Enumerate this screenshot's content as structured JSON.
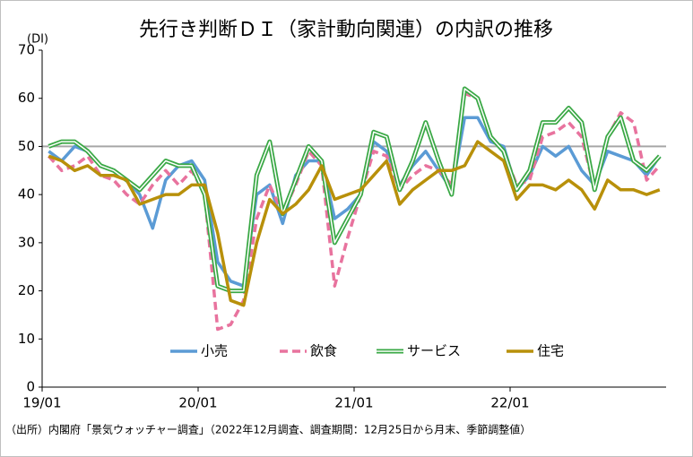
{
  "chart_data": {
    "type": "line",
    "title": "先行き判断ＤＩ（家計動向関連）の内訳の推移",
    "y_label": "(DI)",
    "note": "（出所）内閣府「景気ウォッチャー調査」（2022年12月調査、調査期間：12月25日から月末、季節調整値）",
    "categories": [
      "19/01",
      null,
      null,
      null,
      null,
      null,
      null,
      null,
      null,
      null,
      null,
      null,
      "20/01",
      null,
      null,
      null,
      null,
      null,
      null,
      null,
      null,
      null,
      null,
      null,
      "21/01",
      null,
      null,
      null,
      null,
      null,
      null,
      null,
      null,
      null,
      null,
      null,
      "22/01",
      null,
      null,
      null,
      null,
      null,
      null,
      null,
      null,
      null,
      null,
      null
    ],
    "ylim": [
      0,
      70
    ],
    "yticks": [
      0,
      10,
      20,
      30,
      40,
      50,
      60,
      70
    ],
    "reference_line": 50,
    "reference_color": "#a6a6a6",
    "legend": "bottom",
    "series": [
      {
        "name": "小売",
        "color": "#5b9bd5",
        "style": "solid",
        "values": [
          49,
          47,
          50,
          49,
          46,
          45,
          43,
          40,
          33,
          43,
          46,
          47,
          43,
          26,
          22,
          21,
          40,
          42,
          34,
          44,
          47,
          47,
          35,
          37,
          40,
          51,
          49,
          42,
          46,
          49,
          45,
          41,
          56,
          56,
          51,
          50,
          41,
          44,
          50,
          48,
          50,
          45,
          42,
          49,
          48,
          47,
          44,
          48
        ]
      },
      {
        "name": "飲食",
        "color": "#e8739e",
        "style": "dashed",
        "values": [
          48,
          45,
          46,
          48,
          44,
          43,
          40,
          38,
          42,
          45,
          42,
          45,
          40,
          12,
          13,
          18,
          35,
          42,
          36,
          42,
          49,
          46,
          21,
          31,
          40,
          49,
          48,
          41,
          44,
          46,
          45,
          42,
          61,
          60,
          52,
          49,
          42,
          43,
          52,
          53,
          55,
          52,
          41,
          52,
          57,
          55,
          43,
          46
        ]
      },
      {
        "name": "サービス",
        "color": "#3aa845",
        "style": "double",
        "values": [
          50,
          51,
          51,
          49,
          46,
          45,
          43,
          41,
          44,
          47,
          46,
          46,
          40,
          21,
          20,
          20,
          44,
          51,
          36,
          43,
          50,
          47,
          30,
          35,
          40,
          53,
          52,
          41,
          47,
          55,
          47,
          40,
          62,
          60,
          52,
          49,
          41,
          45,
          55,
          55,
          58,
          55,
          41,
          52,
          56,
          47,
          45,
          48
        ]
      },
      {
        "name": "住宅",
        "color": "#b8900a",
        "style": "solid",
        "values": [
          48,
          47,
          45,
          46,
          44,
          44,
          43,
          38,
          39,
          40,
          40,
          42,
          42,
          32,
          18,
          17,
          30,
          39,
          36,
          38,
          41,
          46,
          39,
          40,
          41,
          44,
          47,
          38,
          41,
          43,
          45,
          45,
          46,
          51,
          49,
          47,
          39,
          42,
          42,
          41,
          43,
          41,
          37,
          43,
          41,
          41,
          40,
          41
        ]
      }
    ]
  }
}
